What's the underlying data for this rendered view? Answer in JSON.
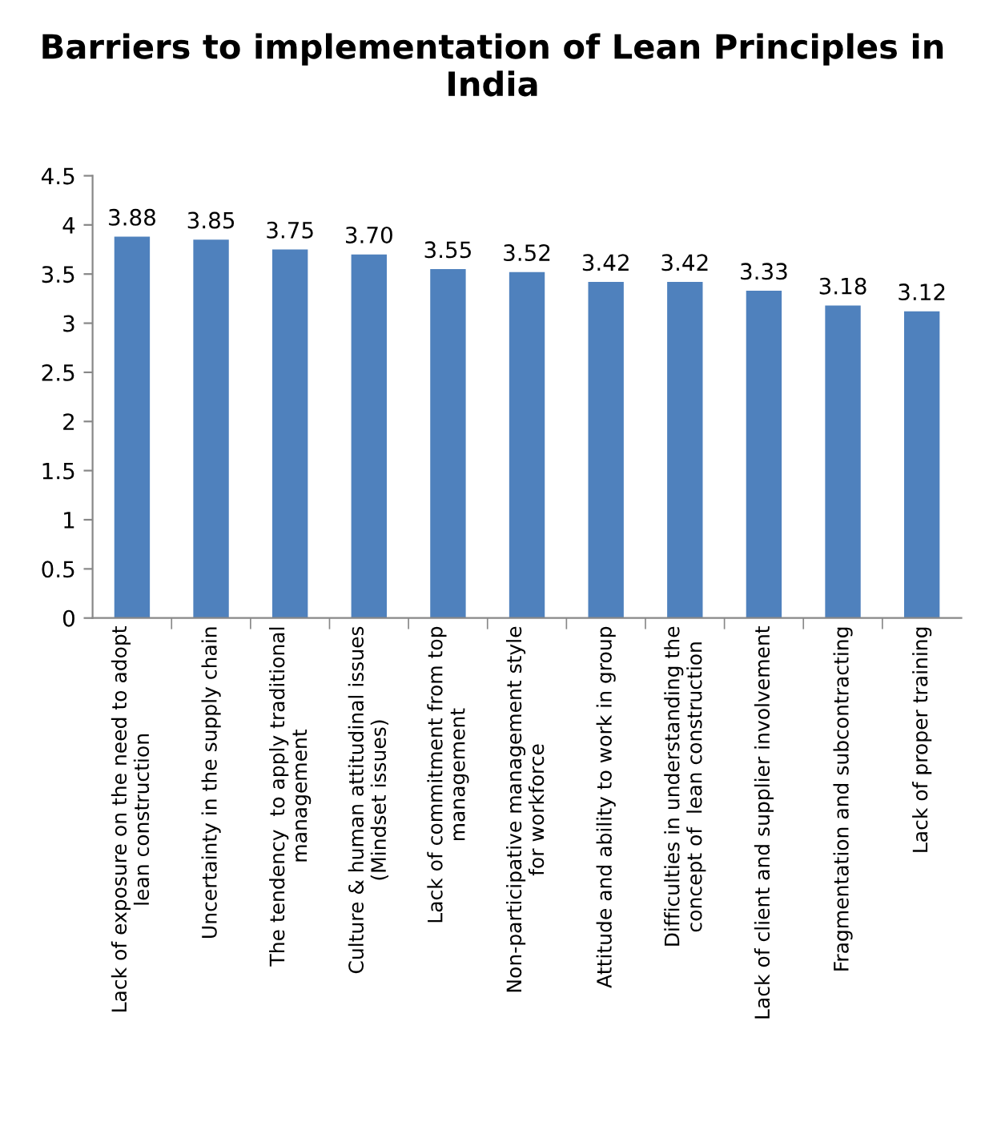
{
  "chart_data": {
    "type": "bar",
    "title": "Barriers to implementation of Lean Principles in India",
    "categories": [
      "Lack of exposure on the need to adopt\nlean construction",
      "Uncertainty in the supply chain",
      "The tendency  to apply traditional\nmanagement",
      "Culture & human attitudinal issues\n(Mindset issues)",
      "Lack of commitment from top\nmanagement",
      "Non-participative management style\nfor workforce",
      "Attitude and ability to work in group",
      "Difficulties in understanding the\nconcept of  lean construction",
      "Lack of client and supplier involvement",
      "Fragmentation and subcontracting",
      "Lack of proper training"
    ],
    "values": [
      3.88,
      3.85,
      3.75,
      3.7,
      3.55,
      3.52,
      3.42,
      3.42,
      3.33,
      3.18,
      3.12
    ],
    "value_labels": [
      "3.88",
      "3.85",
      "3.75",
      "3.70",
      "3.55",
      "3.52",
      "3.42",
      "3.42",
      "3.33",
      "3.18",
      "3.12"
    ],
    "color": "#4f81bd",
    "ylim": [
      0,
      4.5
    ],
    "yticks": [
      0,
      0.5,
      1,
      1.5,
      2,
      2.5,
      3,
      3.5,
      4,
      4.5
    ],
    "grid": false,
    "legend": false
  }
}
